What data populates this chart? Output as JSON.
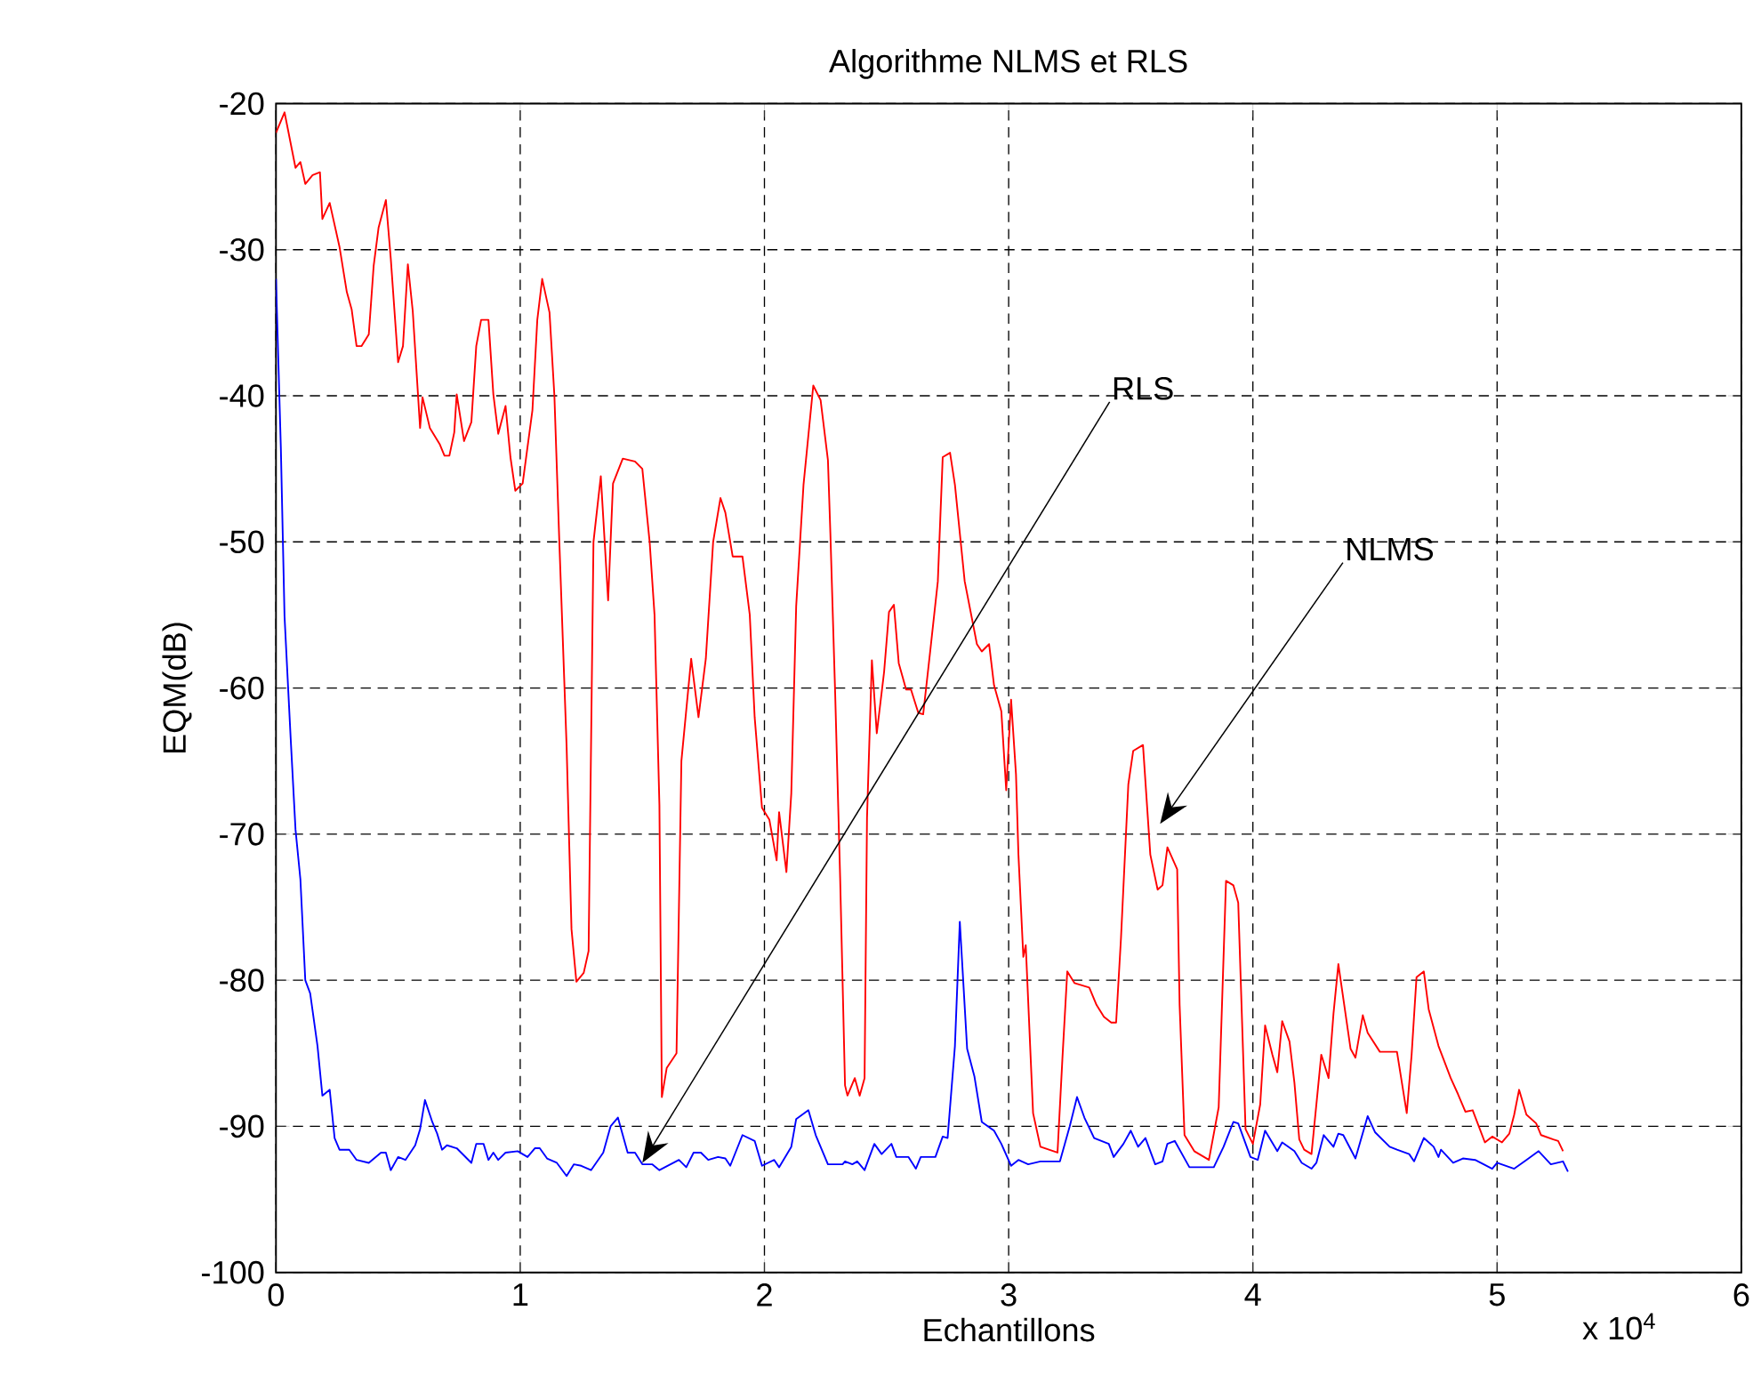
{
  "chart_data": {
    "type": "line",
    "title": "Algorithme NLMS et RLS",
    "xlabel": "Echantillons",
    "ylabel": "EQM(dB)",
    "xlim": [
      0,
      6
    ],
    "ylim": [
      -100,
      -20
    ],
    "xticks": [
      0,
      1,
      2,
      3,
      4,
      5,
      6
    ],
    "yticks": [
      -100,
      -90,
      -80,
      -70,
      -60,
      -50,
      -40,
      -30,
      -20
    ],
    "grid": true,
    "marker": "none",
    "line_style": "solid",
    "annotations": [
      "RLS",
      "NLMS",
      "x 10$^{4}$"
    ],
    "series": [
      {
        "color": "#ff0000",
        "x": [
          0,
          0.035,
          0.08,
          0.1,
          0.12,
          0.15,
          0.18,
          0.19,
          0.22,
          0.26,
          0.29,
          0.31,
          0.33,
          0.35,
          0.38,
          0.4,
          0.42,
          0.45,
          0.47,
          0.5,
          0.52,
          0.54,
          0.56,
          0.59,
          0.6,
          0.63,
          0.67,
          0.69,
          0.71,
          0.73,
          0.74,
          0.77,
          0.8,
          0.82,
          0.84,
          0.87,
          0.89,
          0.91,
          0.94,
          0.96,
          0.98,
          1.01,
          1.05,
          1.07,
          1.09,
          1.12,
          1.14,
          1.16,
          1.19,
          1.21,
          1.23,
          1.26,
          1.28,
          1.3,
          1.33,
          1.36,
          1.38,
          1.42,
          1.47,
          1.5,
          1.53,
          1.55,
          1.57,
          1.58,
          1.6,
          1.64,
          1.66,
          1.7,
          1.73,
          1.76,
          1.79,
          1.82,
          1.84,
          1.87,
          1.91,
          1.94,
          1.96,
          1.99,
          2.02,
          2.05,
          2.06,
          2.09,
          2.11,
          2.13,
          2.16,
          2.2,
          2.23,
          2.26,
          2.27,
          2.29,
          2.31,
          2.33,
          2.34,
          2.37,
          2.39,
          2.41,
          2.42,
          2.44,
          2.46,
          2.49,
          2.51,
          2.53,
          2.55,
          2.58,
          2.6,
          2.63,
          2.65,
          2.68,
          2.71,
          2.73,
          2.76,
          2.78,
          2.82,
          2.87,
          2.89,
          2.92,
          2.94,
          2.97,
          2.99,
          3.01,
          3.03,
          3.04,
          3.06,
          3.07,
          3.1,
          3.13,
          3.2,
          3.22,
          3.24,
          3.27,
          3.33,
          3.36,
          3.39,
          3.42,
          3.44,
          3.46,
          3.49,
          3.51,
          3.55,
          3.58,
          3.61,
          3.63,
          3.65,
          3.69,
          3.7,
          3.72,
          3.76,
          3.82,
          3.86,
          3.89,
          3.92,
          3.94,
          3.97,
          4.0,
          4.03,
          4.05,
          4.08,
          4.1,
          4.12,
          4.15,
          4.17,
          4.19,
          4.21,
          4.24,
          4.28,
          4.31,
          4.33,
          4.35,
          4.4,
          4.42,
          4.45,
          4.47,
          4.52,
          4.59,
          4.63,
          4.65,
          4.67,
          4.7,
          4.72,
          4.76,
          4.81,
          4.84,
          4.87,
          4.9,
          4.95,
          4.98,
          5.02,
          5.05,
          5.07,
          5.09,
          5.12,
          5.16,
          5.18,
          5.23,
          5.25,
          5.27
        ],
        "values": [
          -22,
          -20.6,
          -24.4,
          -24,
          -25.5,
          -24.9,
          -24.7,
          -27.9,
          -26.8,
          -29.8,
          -32.9,
          -34.1,
          -36.6,
          -36.6,
          -35.8,
          -31.1,
          -28.5,
          -26.6,
          -30.6,
          -37.7,
          -36.6,
          -31,
          -34.2,
          -42.2,
          -40.1,
          -42.2,
          -43.3,
          -44.1,
          -44.1,
          -42.5,
          -39.9,
          -43.1,
          -41.8,
          -36.6,
          -34.8,
          -34.8,
          -39.9,
          -42.6,
          -40.7,
          -44.2,
          -46.5,
          -46,
          -41,
          -34.8,
          -32,
          -34.3,
          -40,
          -49.9,
          -64,
          -76.5,
          -80.1,
          -79.5,
          -78,
          -50,
          -45.5,
          -54,
          -46,
          -44.3,
          -44.5,
          -45,
          -50,
          -55,
          -68,
          -88,
          -86,
          -85,
          -65,
          -58,
          -62,
          -58,
          -50,
          -47,
          -48,
          -51,
          -51,
          -55,
          -62,
          -68.2,
          -69,
          -71.8,
          -68.5,
          -72.6,
          -67.2,
          -54.4,
          -46.1,
          -39.3,
          -40.3,
          -44.4,
          -49.4,
          -60.6,
          -73,
          -87.2,
          -87.9,
          -86.7,
          -87.9,
          -86.7,
          -68.9,
          -58.1,
          -63.1,
          -58.9,
          -54.8,
          -54.3,
          -58.3,
          -60.1,
          -60.1,
          -61.7,
          -61.8,
          -57.3,
          -52.7,
          -44.2,
          -43.9,
          -46.1,
          -52.7,
          -57,
          -57.5,
          -57,
          -59.8,
          -61.6,
          -67,
          -60.8,
          -65.9,
          -71.4,
          -78.4,
          -77.6,
          -89.1,
          -91.4,
          -91.8,
          -85.4,
          -79.4,
          -80.2,
          -80.5,
          -81.7,
          -82.5,
          -82.9,
          -82.9,
          -77.1,
          -66.6,
          -64.3,
          -63.9,
          -71.4,
          -73.8,
          -73.5,
          -70.9,
          -72.4,
          -81.7,
          -90.6,
          -91.7,
          -92.3,
          -88.7,
          -73.2,
          -73.5,
          -74.7,
          -90.2,
          -91.2,
          -88.5,
          -83.1,
          -85.1,
          -86.3,
          -82.8,
          -84.2,
          -87,
          -90.9,
          -91.6,
          -91.9,
          -85.1,
          -86.7,
          -82.3,
          -78.9,
          -84.7,
          -85.3,
          -82.4,
          -83.6,
          -84.9,
          -84.9,
          -89.1,
          -85.1,
          -79.8,
          -79.4,
          -82,
          -84.5,
          -86.7,
          -87.8,
          -89,
          -88.9,
          -91.1,
          -90.7,
          -91.1,
          -90.5,
          -89.2,
          -87.5,
          -89.2,
          -89.8,
          -90.6,
          -90.9,
          -91,
          -91.7
        ]
      },
      {
        "color": "#0000ff",
        "x": [
          0,
          0.02,
          0.035,
          0.06,
          0.08,
          0.1,
          0.12,
          0.14,
          0.17,
          0.19,
          0.22,
          0.24,
          0.26,
          0.3,
          0.33,
          0.38,
          0.43,
          0.45,
          0.47,
          0.5,
          0.53,
          0.57,
          0.59,
          0.61,
          0.64,
          0.66,
          0.68,
          0.7,
          0.74,
          0.8,
          0.82,
          0.85,
          0.87,
          0.89,
          0.91,
          0.94,
          0.99,
          1.03,
          1.06,
          1.08,
          1.11,
          1.15,
          1.19,
          1.22,
          1.25,
          1.29,
          1.34,
          1.37,
          1.4,
          1.44,
          1.47,
          1.5,
          1.54,
          1.57,
          1.65,
          1.68,
          1.71,
          1.74,
          1.77,
          1.81,
          1.84,
          1.86,
          1.91,
          1.96,
          1.99,
          2.04,
          2.06,
          2.11,
          2.13,
          2.18,
          2.21,
          2.26,
          2.32,
          2.33,
          2.36,
          2.38,
          2.41,
          2.45,
          2.48,
          2.52,
          2.54,
          2.59,
          2.62,
          2.64,
          2.7,
          2.73,
          2.75,
          2.78,
          2.8,
          2.83,
          2.86,
          2.89,
          2.94,
          2.97,
          3.01,
          3.04,
          3.08,
          3.13,
          3.21,
          3.25,
          3.28,
          3.31,
          3.35,
          3.41,
          3.43,
          3.47,
          3.5,
          3.53,
          3.56,
          3.6,
          3.63,
          3.65,
          3.68,
          3.74,
          3.84,
          3.88,
          3.92,
          3.94,
          3.99,
          4.02,
          4.05,
          4.1,
          4.12,
          4.17,
          4.2,
          4.24,
          4.26,
          4.29,
          4.33,
          4.35,
          4.37,
          4.42,
          4.47,
          4.5,
          4.56,
          4.59,
          4.64,
          4.66,
          4.7,
          4.74,
          4.76,
          4.77,
          4.82,
          4.86,
          4.91,
          4.98,
          5.0,
          5.07,
          5.12,
          5.17,
          5.22,
          5.27,
          5.29
        ],
        "values": [
          -32,
          -43.6,
          -55.1,
          -63.4,
          -69.7,
          -73.1,
          -80,
          -80.9,
          -84.5,
          -87.9,
          -87.5,
          -90.8,
          -91.6,
          -91.6,
          -92.3,
          -92.5,
          -91.8,
          -91.8,
          -93,
          -92.1,
          -92.3,
          -91.3,
          -90.2,
          -88.2,
          -89.7,
          -90.5,
          -91.6,
          -91.3,
          -91.5,
          -92.5,
          -91.2,
          -91.2,
          -92.3,
          -91.8,
          -92.3,
          -91.8,
          -91.7,
          -92.1,
          -91.5,
          -91.5,
          -92.2,
          -92.5,
          -93.4,
          -92.6,
          -92.7,
          -93,
          -91.8,
          -90,
          -89.4,
          -91.8,
          -91.8,
          -92.6,
          -92.6,
          -93,
          -92.3,
          -92.8,
          -91.8,
          -91.8,
          -92.3,
          -92.1,
          -92.2,
          -92.7,
          -90.6,
          -91,
          -92.7,
          -92.3,
          -92.8,
          -91.4,
          -89.5,
          -88.9,
          -90.6,
          -92.6,
          -92.6,
          -92.4,
          -92.6,
          -92.4,
          -93,
          -91.2,
          -91.9,
          -91.2,
          -92.1,
          -92.1,
          -92.9,
          -92.1,
          -92.1,
          -90.7,
          -90.8,
          -84.5,
          -76,
          -84.7,
          -86.6,
          -89.7,
          -90.3,
          -91.2,
          -92.7,
          -92.3,
          -92.6,
          -92.4,
          -92.4,
          -90,
          -88,
          -89.4,
          -90.8,
          -91.2,
          -92.1,
          -91.2,
          -90.3,
          -91.4,
          -90.8,
          -92.6,
          -92.4,
          -91.2,
          -91,
          -92.8,
          -92.8,
          -91.4,
          -89.7,
          -89.8,
          -92.1,
          -92.3,
          -90.3,
          -91.7,
          -91.1,
          -91.7,
          -92.5,
          -92.9,
          -92.5,
          -90.6,
          -91.4,
          -90.5,
          -90.6,
          -92.2,
          -89.3,
          -90.4,
          -91.4,
          -91.6,
          -91.9,
          -92.4,
          -90.8,
          -91.4,
          -92.1,
          -91.6,
          -92.5,
          -92.2,
          -92.3,
          -92.9,
          -92.5,
          -92.9,
          -92.3,
          -91.7,
          -92.6,
          -92.4,
          -93.1
        ]
      }
    ]
  }
}
